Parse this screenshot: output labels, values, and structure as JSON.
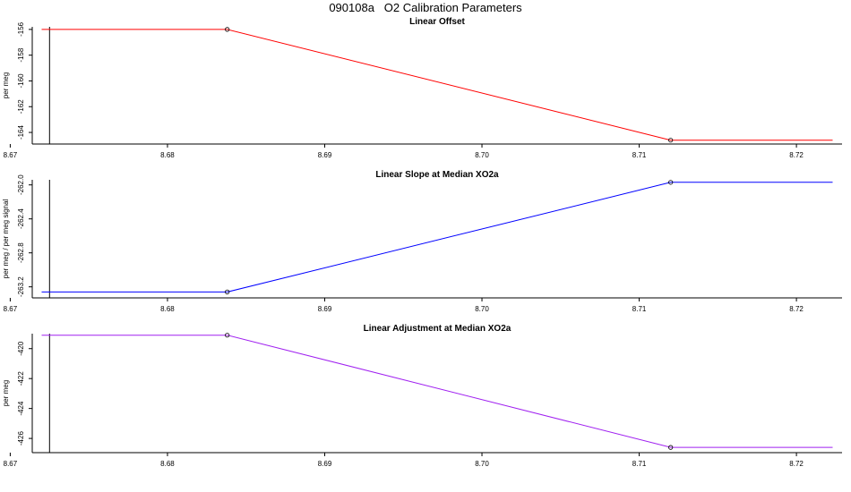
{
  "page": {
    "title": "090108a   O2 Calibration Parameters"
  },
  "chart_data": [
    {
      "type": "line",
      "title": "Linear Offset",
      "xlabel": "",
      "ylabel": "per meg",
      "xlim": [
        8.6714,
        8.7229
      ],
      "ylim": [
        -164.9,
        -155.8
      ],
      "x_ticks": [
        8.67,
        8.68,
        8.69,
        8.7,
        8.71,
        8.72
      ],
      "x_tick_labels": [
        "8.67",
        "8.68",
        "8.69",
        "8.70",
        "8.71",
        "8.72"
      ],
      "y_ticks": [
        -156,
        -158,
        -160,
        -162,
        -164
      ],
      "y_tick_labels": [
        "-156",
        "-158",
        "-160",
        "-162",
        "-164"
      ],
      "vline_x": 8.6725,
      "color": "#ff0000",
      "series": [
        {
          "x": [
            8.672,
            8.6838,
            8.712,
            8.7223
          ],
          "y": [
            -156.0,
            -156.0,
            -164.6,
            -164.6
          ],
          "markers": [
            false,
            true,
            true,
            false
          ]
        }
      ],
      "grid": false
    },
    {
      "type": "line",
      "title": "Linear Slope at Median XO2a",
      "xlabel": "",
      "ylabel": "per meg / per meg signal",
      "xlim": [
        8.6714,
        8.7229
      ],
      "ylim": [
        -263.33,
        -261.94
      ],
      "x_ticks": [
        8.67,
        8.68,
        8.69,
        8.7,
        8.71,
        8.72
      ],
      "x_tick_labels": [
        "8.67",
        "8.68",
        "8.69",
        "8.70",
        "8.71",
        "8.72"
      ],
      "y_ticks": [
        -262.0,
        -262.4,
        -262.8,
        -263.2
      ],
      "y_tick_labels": [
        "-262.0",
        "-262.4",
        "-262.8",
        "-263.2"
      ],
      "vline_x": 8.6725,
      "color": "#0000ff",
      "series": [
        {
          "x": [
            8.672,
            8.6838,
            8.712,
            8.7223
          ],
          "y": [
            -263.26,
            -263.26,
            -261.97,
            -261.97
          ],
          "markers": [
            false,
            true,
            true,
            false
          ]
        }
      ],
      "grid": false
    },
    {
      "type": "line",
      "title": "Linear Adjustment at Median XO2a",
      "xlabel": "",
      "ylabel": "per meg",
      "xlim": [
        8.6714,
        8.7229
      ],
      "ylim": [
        -426.95,
        -419.0
      ],
      "x_ticks": [
        8.67,
        8.68,
        8.69,
        8.7,
        8.71,
        8.72
      ],
      "x_tick_labels": [
        "8.67",
        "8.68",
        "8.69",
        "8.70",
        "8.71",
        "8.72"
      ],
      "y_ticks": [
        -420,
        -422,
        -424,
        -426
      ],
      "y_tick_labels": [
        "-420",
        "-422",
        "-424",
        "-426"
      ],
      "vline_x": 8.6725,
      "color": "#a020f0",
      "series": [
        {
          "x": [
            8.672,
            8.6838,
            8.712,
            8.7223
          ],
          "y": [
            -419.1,
            -419.1,
            -426.6,
            -426.6
          ],
          "markers": [
            false,
            true,
            true,
            false
          ]
        }
      ],
      "grid": false
    }
  ]
}
